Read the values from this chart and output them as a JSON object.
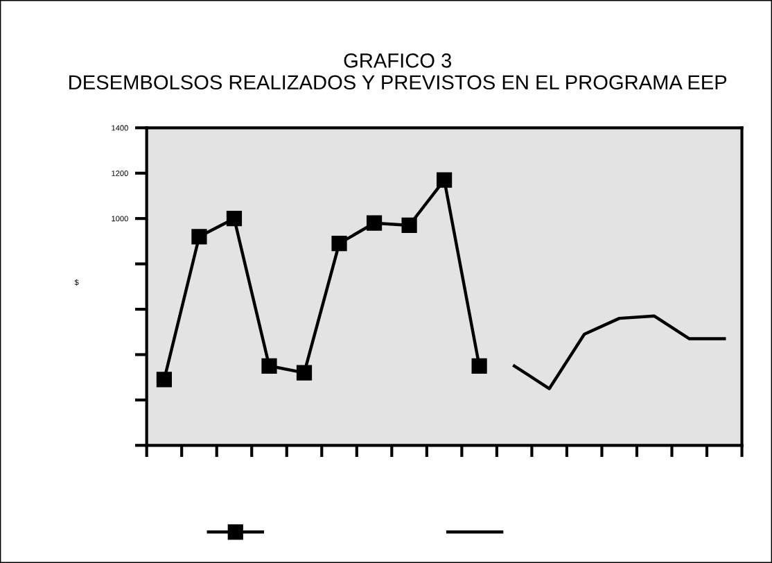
{
  "chart_data": {
    "type": "line",
    "title": "GRAFICO 3\nDESEMBOLSOS REALIZADOS Y PREVISTOS EN EL PROGRAMA EEP",
    "ylabel": "$",
    "categories": [
      null,
      null,
      null,
      null,
      null,
      null,
      null,
      null,
      null,
      null,
      null,
      null,
      null,
      null,
      null,
      null,
      null
    ],
    "series": [
      {
        "color": "#000000",
        "marker": "square",
        "values": [
          290,
          920,
          1000,
          350,
          320,
          890,
          980,
          970,
          1170,
          350,
          null,
          null,
          null,
          null,
          null,
          null,
          null
        ]
      },
      {
        "color": "#000000",
        "marker": "none",
        "values": [
          null,
          null,
          null,
          null,
          null,
          null,
          null,
          null,
          null,
          null,
          350,
          250,
          490,
          560,
          570,
          470,
          470
        ]
      }
    ],
    "ylim": [
      0,
      1400
    ],
    "yticks": [
      {
        "value": 0,
        "label": null
      },
      {
        "value": 200,
        "label": null
      },
      {
        "value": 400,
        "label": null
      },
      {
        "value": 600,
        "label": null
      },
      {
        "value": 800,
        "label": null
      },
      1000,
      1200,
      1400
    ],
    "grid": false
  }
}
